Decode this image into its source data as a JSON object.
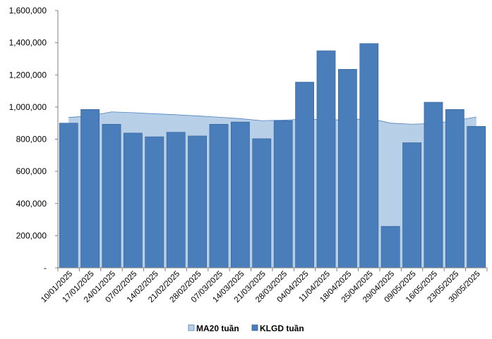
{
  "chart_data": {
    "type": "bar",
    "categories": [
      "10/01/2025",
      "17/01/2025",
      "24/01/2025",
      "07/02/2025",
      "14/02/2025",
      "21/02/2025",
      "28/02/2025",
      "07/03/2025",
      "14/03/2025",
      "21/03/2025",
      "28/03/2025",
      "04/04/2025",
      "11/04/2025",
      "18/04/2025",
      "25/04/2025",
      "29/04/2025",
      "09/05/2025",
      "16/05/2025",
      "23/05/2025",
      "30/05/2025"
    ],
    "series": [
      {
        "name": "MA20 tuần",
        "kind": "area",
        "color": "#b8cfe8",
        "edge_color": "#4f81bd",
        "values": [
          935000,
          945000,
          970000,
          965000,
          958000,
          952000,
          945000,
          937000,
          928000,
          915000,
          918000,
          925000,
          922000,
          918000,
          930000,
          900000,
          893000,
          898000,
          915000,
          938000
        ]
      },
      {
        "name": "KLGD tuần",
        "kind": "bar",
        "color": "#4a7ebb",
        "edge_color": "#2e5f99",
        "values": [
          900000,
          985000,
          893000,
          838000,
          815000,
          843000,
          820000,
          893000,
          907000,
          803000,
          915000,
          1155000,
          1350000,
          1235000,
          1395000,
          258000,
          778000,
          1030000,
          985000,
          880000
        ]
      }
    ],
    "y_ticks": [
      "-",
      "200,000",
      "400,000",
      "600,000",
      "800,000",
      "1,000,000",
      "1,200,000",
      "1,400,000",
      "1,600,000"
    ],
    "ylim": [
      0,
      1600000
    ],
    "grid": false,
    "legend_position": "bottom"
  }
}
